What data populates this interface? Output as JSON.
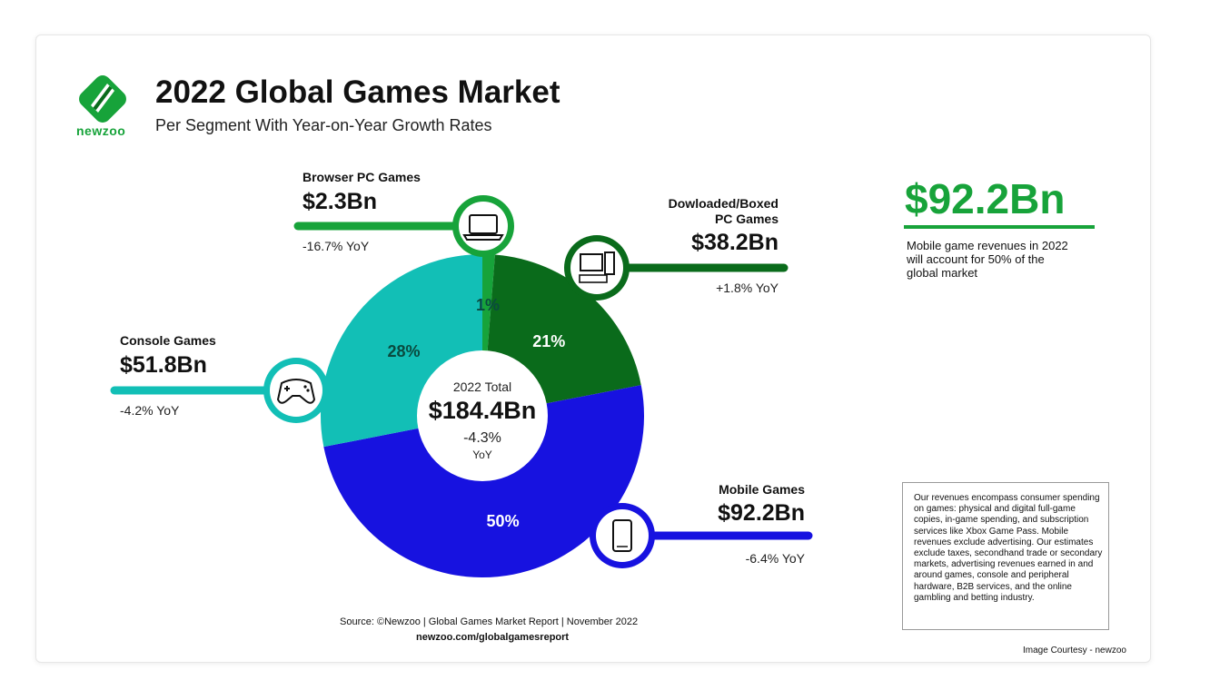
{
  "header": {
    "logo_text": "newzoo",
    "title": "2022 Global Games Market",
    "subtitle": "Per Segment With Year-on-Year Growth Rates"
  },
  "center": {
    "label": "2022 Total",
    "value": "$184.4Bn",
    "yoy": "-4.3%",
    "yoy_unit": "YoY"
  },
  "segments": {
    "browser": {
      "name": "Browser PC Games",
      "value": "$2.3Bn",
      "yoy": "-16.7% YoY",
      "icon": "laptop-icon"
    },
    "downloaded": {
      "name_line1": "Dowloaded/Boxed",
      "name_line2": "PC Games",
      "value": "$38.2Bn",
      "yoy": "+1.8% YoY",
      "icon": "desktop-pc-icon"
    },
    "console": {
      "name": "Console Games",
      "value": "$51.8Bn",
      "yoy": "-4.2% YoY",
      "icon": "gamepad-icon"
    },
    "mobile": {
      "name": "Mobile Games",
      "value": "$92.2Bn",
      "yoy": "-6.4% YoY",
      "icon": "smartphone-icon"
    }
  },
  "highlight": {
    "value": "$92.2Bn",
    "note": "Mobile game revenues in 2022 will account for 50% of the global market"
  },
  "disclaimer": "Our revenues encompass consumer spending on games: physical and digital full-game copies, in-game spending, and subscription services like Xbox Game Pass. Mobile revenues exclude advertising. Our estimates exclude taxes, secondhand trade or secondary markets, advertising revenues earned in and around games, console and peripheral hardware, B2B services, and the online gambling and betting industry.",
  "footer": {
    "source": "Source: ©Newzoo | Global Games Market Report | November 2022",
    "url": "newzoo.com/globalgamesreport",
    "courtesy": "Image Courtesy - newzoo"
  },
  "colors": {
    "browser": "#17a33a",
    "downloaded": "#0a6b1b",
    "console": "#12bfb6",
    "mobile": "#1712e0",
    "brand": "#17a33a"
  },
  "chart_data": {
    "type": "pie",
    "title": "2022 Global Games Market",
    "categories": [
      "Browser PC Games",
      "Dowloaded/Boxed PC Games",
      "Mobile Games",
      "Console Games"
    ],
    "values": [
      2.3,
      38.2,
      92.2,
      51.8
    ],
    "value_labels": [
      "$2.3Bn",
      "$38.2Bn",
      "$92.2Bn",
      "$51.8Bn"
    ],
    "percent_labels": [
      "1%",
      "21%",
      "50%",
      "28%"
    ],
    "yoy": [
      "-16.7%",
      "+1.8%",
      "-6.4%",
      "-4.2%"
    ],
    "total": 184.4,
    "unit": "Bn USD"
  }
}
